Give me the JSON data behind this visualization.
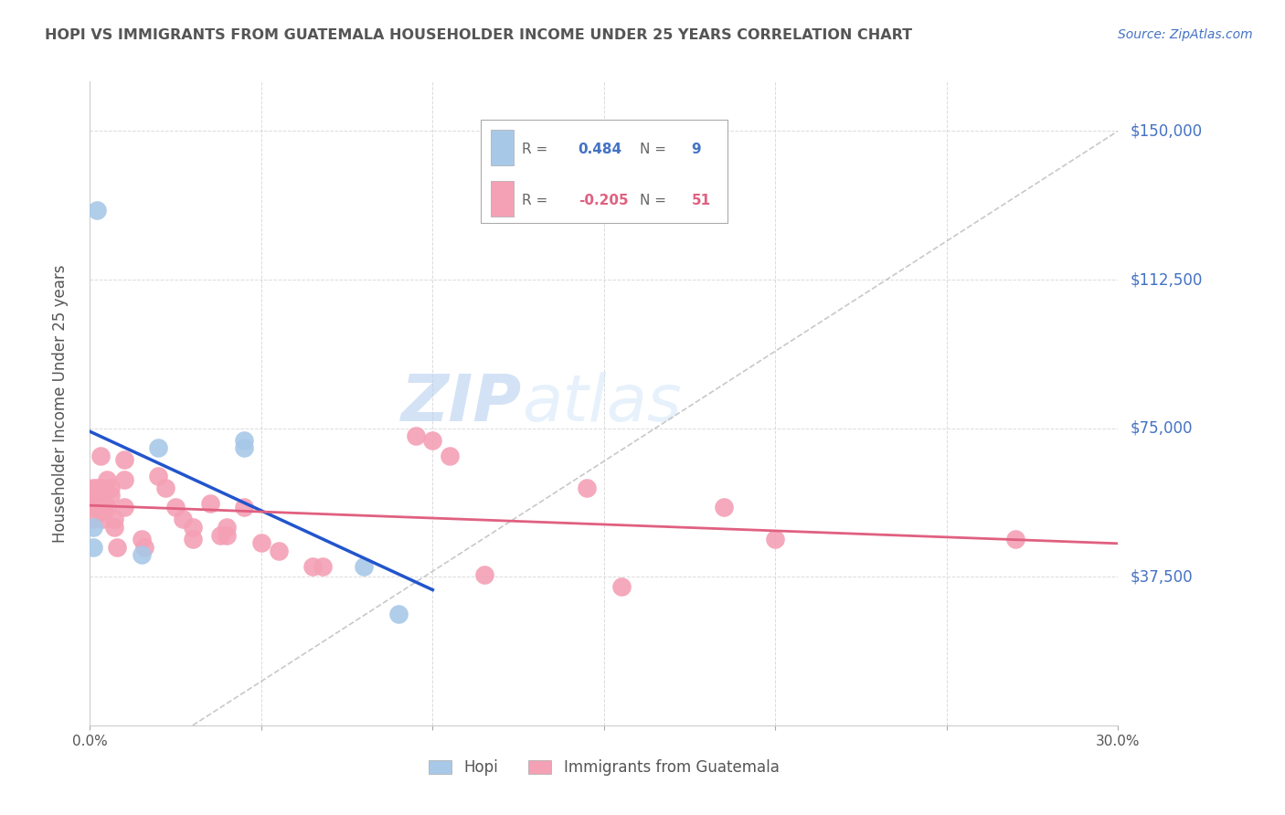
{
  "title": "HOPI VS IMMIGRANTS FROM GUATEMALA HOUSEHOLDER INCOME UNDER 25 YEARS CORRELATION CHART",
  "source": "Source: ZipAtlas.com",
  "ylabel": "Householder Income Under 25 years",
  "xlim": [
    0.0,
    0.3
  ],
  "ylim": [
    0,
    162500
  ],
  "yticks": [
    0,
    37500,
    75000,
    112500,
    150000
  ],
  "ytick_labels": [
    "",
    "$37,500",
    "$75,000",
    "$112,500",
    "$150,000"
  ],
  "xticks": [
    0.0,
    0.05,
    0.1,
    0.15,
    0.2,
    0.25,
    0.3
  ],
  "xtick_labels": [
    "0.0%",
    "",
    "",
    "",
    "",
    "",
    "30.0%"
  ],
  "hopi_R": 0.484,
  "hopi_N": 9,
  "guatemala_R": -0.205,
  "guatemala_N": 51,
  "hopi_color": "#a8c8e8",
  "guatemala_color": "#f4a0b5",
  "hopi_line_color": "#2255cc",
  "guatemala_line_color": "#e06080",
  "ref_line_color": "#bbbbbb",
  "hopi_scatter_x": [
    0.001,
    0.001,
    0.002,
    0.015,
    0.02,
    0.045,
    0.045,
    0.08,
    0.09
  ],
  "hopi_scatter_y": [
    50000,
    45000,
    130000,
    43000,
    70000,
    70000,
    72000,
    40000,
    28000
  ],
  "guatemala_scatter_x": [
    0.001,
    0.001,
    0.001,
    0.001,
    0.001,
    0.002,
    0.002,
    0.002,
    0.003,
    0.003,
    0.003,
    0.003,
    0.004,
    0.004,
    0.004,
    0.005,
    0.005,
    0.006,
    0.006,
    0.007,
    0.007,
    0.008,
    0.01,
    0.01,
    0.01,
    0.015,
    0.016,
    0.02,
    0.022,
    0.025,
    0.027,
    0.03,
    0.03,
    0.035,
    0.038,
    0.04,
    0.04,
    0.045,
    0.05,
    0.055,
    0.065,
    0.068,
    0.095,
    0.1,
    0.105,
    0.115,
    0.145,
    0.155,
    0.185,
    0.2,
    0.27
  ],
  "guatemala_scatter_y": [
    52000,
    55000,
    57000,
    60000,
    56000,
    55000,
    58000,
    60000,
    54000,
    57000,
    60000,
    68000,
    52000,
    58000,
    55000,
    62000,
    55000,
    58000,
    60000,
    50000,
    52000,
    45000,
    55000,
    62000,
    67000,
    47000,
    45000,
    63000,
    60000,
    55000,
    52000,
    50000,
    47000,
    56000,
    48000,
    48000,
    50000,
    55000,
    46000,
    44000,
    40000,
    40000,
    73000,
    72000,
    68000,
    38000,
    60000,
    35000,
    55000,
    47000,
    47000
  ],
  "background_color": "#ffffff",
  "grid_color": "#cccccc",
  "watermark_zip": "ZIP",
  "watermark_atlas": "atlas",
  "legend_hopi_label": "Hopi",
  "legend_guatemala_label": "Immigrants from Guatemala",
  "title_color": "#555555",
  "axis_label_color": "#555555",
  "ytick_color": "#4472c4",
  "xtick_color": "#555555",
  "legend_R_color_hopi": "#4472c4",
  "legend_R_color_guatemala": "#e06080"
}
